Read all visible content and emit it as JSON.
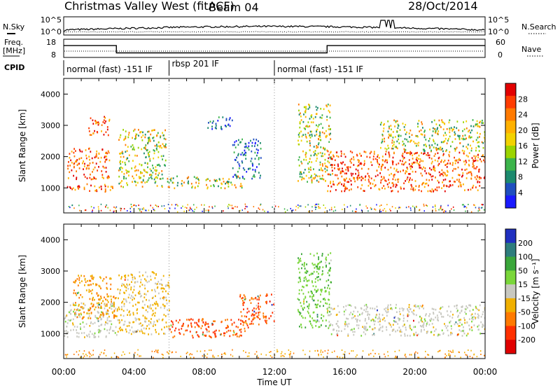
{
  "header": {
    "title": "Christmas Valley West (fitACF)",
    "beam": "Beam 04",
    "date": "28/Oct/2014"
  },
  "noise_panel": {
    "left_label": "N.Sky",
    "right_label": "N.Search",
    "left_ticks": [
      "10^5",
      "10^0"
    ],
    "right_ticks": [
      "10^5",
      "10^0"
    ]
  },
  "freq_panel": {
    "left_label_line1": "Freq.",
    "left_label_line2": "[MHz]",
    "left_ticks": [
      "18",
      "8"
    ],
    "right_ticks": [
      "60",
      "0"
    ],
    "right_label": "Nave"
  },
  "cpid_panel": {
    "label": "CPID",
    "segments": [
      {
        "name": "normal (fast) -151 IF",
        "start_hour": 0,
        "end_hour": 6
      },
      {
        "name": "rbsp 201 IF",
        "start_hour": 6,
        "end_hour": 12
      },
      {
        "name": "normal (fast) -151 IF",
        "start_hour": 12,
        "end_hour": 24
      }
    ]
  },
  "power_panel": {
    "ylabel": "Slant Range [km]",
    "yticks": [
      "1000",
      "2000",
      "3000",
      "4000"
    ],
    "colorbar_label": "Power [dB]",
    "colorbar_ticks": [
      "28",
      "24",
      "20",
      "16",
      "12",
      "8",
      "4"
    ],
    "colorbar_colors": [
      "#e30000",
      "#ff3c00",
      "#ff7a00",
      "#ffb100",
      "#f2d200",
      "#9bd400",
      "#3cb44b",
      "#1c8a6e",
      "#1f4fbf",
      "#1a1aff"
    ]
  },
  "velocity_panel": {
    "ylabel": "Slant Range [km]",
    "yticks": [
      "1000",
      "2000",
      "3000",
      "4000"
    ],
    "colorbar_label": "Velocity [m s⁻¹]",
    "colorbar_ticks": [
      "200",
      "100",
      "50",
      "15",
      "-15",
      "-50",
      "-100",
      "-200"
    ],
    "colorbar_colors": [
      "#2030c0",
      "#2e7d7d",
      "#3aa63a",
      "#7ad63a",
      "#c8c8c0",
      "#f0b000",
      "#ff7a00",
      "#ff3000",
      "#e00000"
    ]
  },
  "x_axis": {
    "ticks": [
      "00:00",
      "04:00",
      "08:00",
      "12:00",
      "16:00",
      "20:00",
      "00:00"
    ],
    "label": "Time UT"
  },
  "chart_data": {
    "type": "heatmap",
    "title": "Christmas Valley West (fitACF)",
    "xlabel": "Time UT",
    "xlim": [
      0,
      24
    ],
    "ylabel": "Slant Range [km]",
    "ylim": [
      200,
      4500
    ],
    "frequency_MHz": [
      {
        "start_hour": 0,
        "end_hour": 3.0,
        "value": 14.5
      },
      {
        "start_hour": 3.0,
        "end_hour": 15.0,
        "value": 10.5
      },
      {
        "start_hour": 15.0,
        "end_hour": 24,
        "value": 14.5
      }
    ],
    "power_regions": [
      {
        "t0": 0.0,
        "t1": 2.8,
        "r0": 900,
        "r1": 1150,
        "level": "high"
      },
      {
        "t0": 0.2,
        "t1": 2.6,
        "r0": 1300,
        "r1": 2300,
        "level": "high"
      },
      {
        "t0": 1.4,
        "t1": 2.6,
        "r0": 2700,
        "r1": 3300,
        "level": "high"
      },
      {
        "t0": 3.1,
        "t1": 5.8,
        "r0": 1050,
        "r1": 2900,
        "level": "medium"
      },
      {
        "t0": 5.8,
        "t1": 10.2,
        "r0": 1000,
        "r1": 1400,
        "level": "medium"
      },
      {
        "t0": 8.0,
        "t1": 9.6,
        "r0": 2900,
        "r1": 3300,
        "level": "low"
      },
      {
        "t0": 9.6,
        "t1": 11.2,
        "r0": 1300,
        "r1": 2600,
        "level": "low"
      },
      {
        "t0": 13.3,
        "t1": 15.2,
        "r0": 1200,
        "r1": 3700,
        "level": "medium"
      },
      {
        "t0": 15.0,
        "t1": 24.0,
        "r0": 900,
        "r1": 2200,
        "level": "high"
      },
      {
        "t0": 18.0,
        "t1": 24.0,
        "r0": 2200,
        "r1": 3200,
        "level": "medium"
      }
    ],
    "velocity_regions": [
      {
        "t0": 0.0,
        "t1": 3.0,
        "r0": 900,
        "r1": 2000,
        "v": 0
      },
      {
        "t0": 0.5,
        "t1": 3.0,
        "r0": 1500,
        "r1": 2900,
        "v": -50
      },
      {
        "t0": 3.0,
        "t1": 6.0,
        "r0": 1000,
        "r1": 3000,
        "v": -20
      },
      {
        "t0": 6.0,
        "t1": 10.5,
        "r0": 900,
        "r1": 1500,
        "v": -100
      },
      {
        "t0": 10.0,
        "t1": 12.0,
        "r0": 1300,
        "r1": 2300,
        "v": -100
      },
      {
        "t0": 13.3,
        "t1": 15.2,
        "r0": 1200,
        "r1": 3600,
        "v": 40
      },
      {
        "t0": 15.0,
        "t1": 24.0,
        "r0": 950,
        "r1": 1950,
        "v": 0
      }
    ]
  }
}
